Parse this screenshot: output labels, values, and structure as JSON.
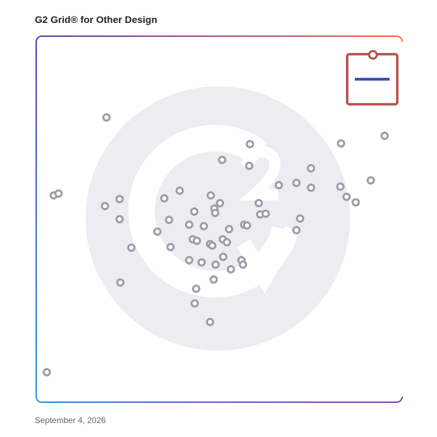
{
  "chart_data": {
    "type": "scatter",
    "title": "G2 Grid® for Other Design",
    "footnote": "September 4, 2026",
    "xlim": [
      0,
      100
    ],
    "ylim": [
      0,
      100
    ],
    "color": "#9aa0a8",
    "x": [
      19.2,
      4.8,
      6.1,
      18.8,
      22.8,
      22.8,
      26.0,
      23.0,
      2.9,
      35.0,
      39.2,
      36.3,
      33.1,
      36.7,
      43.2,
      47.7,
      50.2,
      48.7,
      48.9,
      41.8,
      45.8,
      42.8,
      43.9,
      47.5,
      48.1,
      52.7,
      51.0,
      52.1,
      56.8,
      57.6,
      41.8,
      45.2,
      49.0,
      51.1,
      53.2,
      56.1,
      56.5,
      48.5,
      43.7,
      43.3,
      47.5,
      50.8,
      58.4,
      58.2,
      60.8,
      61.2,
      62.7,
      66.3,
      71.1,
      75.1,
      75.1,
      83.3,
      83.1,
      84.8,
      87.3,
      91.4,
      95.2,
      72.1,
      71.1
    ],
    "y": [
      77.8,
      56.5,
      57.0,
      53.6,
      55.5,
      50.0,
      42.2,
      32.7,
      8.2,
      55.7,
      57.8,
      49.8,
      46.6,
      42.4,
      52.1,
      56.5,
      54.4,
      52.9,
      51.7,
      48.5,
      48.1,
      44.5,
      44.1,
      43.2,
      42.8,
      47.3,
      44.5,
      43.7,
      48.5,
      48.3,
      38.8,
      38.2,
      37.6,
      39.7,
      36.3,
      38.8,
      37.6,
      33.5,
      31.0,
      27.0,
      21.9,
      66.2,
      70.5,
      64.6,
      54.4,
      51.3,
      51.5,
      59.3,
      59.9,
      63.9,
      58.6,
      70.7,
      58.9,
      56.1,
      54.6,
      60.6,
      72.8,
      50.2,
      47.0
    ],
    "highlight": {
      "x": 92.0,
      "y": 94.9,
      "color": "#b5524e"
    }
  }
}
